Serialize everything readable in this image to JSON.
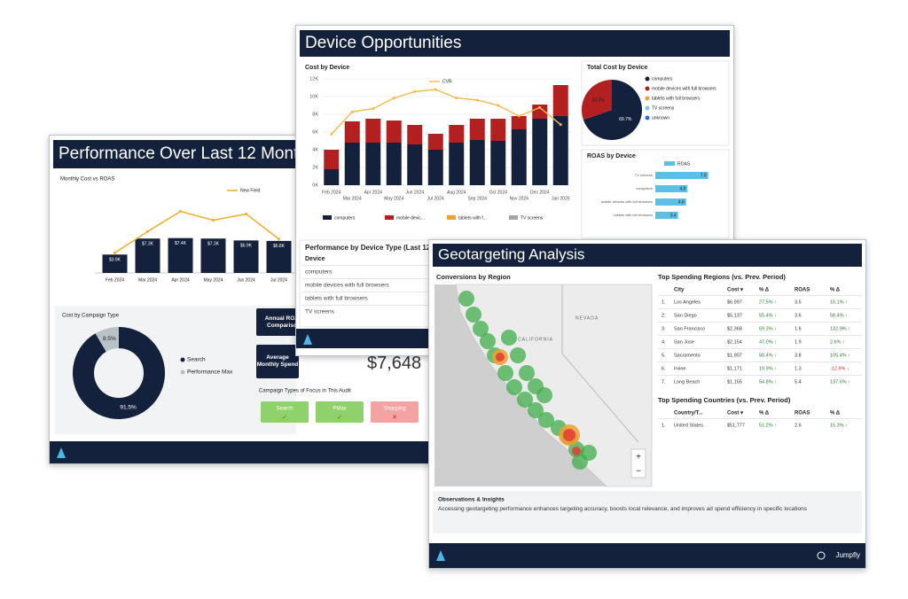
{
  "performance": {
    "title": "Performance Over Last 12 Months",
    "monthly_chart": {
      "type": "bar",
      "title": "Monthly Cost vs ROAS",
      "categories": [
        "Feb 2024",
        "Mar 2024",
        "Apr 2024",
        "May 2024",
        "Jun 2024",
        "Jul 2024"
      ],
      "bars": {
        "color": "#14213d",
        "values": [
          3900,
          7300,
          7400,
          7300,
          6900,
          6800
        ],
        "value_labels": [
          "$3.9K",
          "$7.3K",
          "$7.4K",
          "$7.3K",
          "$6.9K",
          "$6.8K"
        ]
      },
      "line": {
        "name": "New Field",
        "color": "#f2b134",
        "values": [
          1.6,
          3.3,
          4.9,
          4.2,
          4.7,
          2.7
        ]
      },
      "ylim": [
        0,
        16000
      ],
      "y2lim": [
        0,
        6
      ]
    },
    "donut": {
      "type": "pie",
      "title": "Cost by Campaign Type",
      "labels": [
        "Search",
        "Performance Max"
      ],
      "values": [
        91.5,
        8.5
      ],
      "value_labels": [
        "91.5%",
        "8.5%"
      ],
      "colors": [
        "#14213d",
        "#b8c2c7"
      ]
    },
    "annual_button": "Annual ROAS Comparison",
    "average_button": "Average Monthly Spend",
    "average_value": "$7,648",
    "focus": {
      "title": "Campaign Types of Focus in This Audit",
      "chips": [
        {
          "label": "Search",
          "status": "✓"
        },
        {
          "label": "PMax",
          "status": "✓"
        },
        {
          "label": "Shopping",
          "status": "✕"
        }
      ]
    }
  },
  "device": {
    "title": "Device Opportunities",
    "cost_chart": {
      "type": "bar",
      "title": "Cost by Device",
      "categories": [
        "Feb 2024",
        "Mar 2024",
        "Apr 2024",
        "May 2024",
        "Jun 2024",
        "Jul 2024",
        "Aug 2024",
        "Sep 2024",
        "Oct 2024",
        "Nov 2024",
        "Dec 2024",
        "Jan 2025"
      ],
      "series": [
        {
          "name": "computers",
          "color": "#14213d",
          "values": [
            1.8,
            4.8,
            4.8,
            4.8,
            4.6,
            4.0,
            4.8,
            5.1,
            5.0,
            6.3,
            7.5,
            7.8
          ]
        },
        {
          "name": "mobile devic...",
          "color": "#b3201f",
          "values": [
            2.2,
            2.4,
            2.7,
            2.5,
            2.2,
            1.8,
            2.0,
            2.4,
            2.5,
            1.5,
            1.6,
            3.5
          ]
        },
        {
          "name": "tablets with f...",
          "color": "#f0a030",
          "values": [
            0,
            0,
            0,
            0,
            0,
            0,
            0,
            0,
            0,
            0,
            0,
            0
          ]
        },
        {
          "name": "TV screens",
          "color": "#a6a6a6",
          "values": [
            0,
            0,
            0,
            0,
            0,
            0,
            0,
            0,
            0,
            0,
            0,
            0
          ]
        },
        {
          "name": "CVR",
          "color": "#f5b94a",
          "axis": "y2",
          "values": [
            4.8,
            6.9,
            7.2,
            8.2,
            8.8,
            9.0,
            8.2,
            8.0,
            7.5,
            6.5,
            7.3,
            5.7
          ]
        }
      ],
      "ylim": [
        0,
        12
      ],
      "yticks": [
        {
          "value": 0,
          "label": "0K"
        },
        {
          "value": 2,
          "label": "2K"
        },
        {
          "value": 4,
          "label": "4K"
        },
        {
          "value": 6,
          "label": "6K"
        },
        {
          "value": 8,
          "label": "8K"
        },
        {
          "value": 10,
          "label": "10K"
        },
        {
          "value": 12,
          "label": "12K"
        }
      ],
      "y2lim": [
        0,
        10
      ]
    },
    "total_cost": {
      "type": "pie",
      "title": "Total Cost by Device",
      "labels": [
        "computers",
        "mobile devices with full browsers",
        "tablets with full browsers",
        "TV screens",
        "unknown"
      ],
      "values": [
        69.7,
        30.3,
        0,
        0,
        0
      ],
      "value_labels": [
        "69.7%",
        "30.3%",
        null,
        null,
        null
      ],
      "colors": [
        "#14213d",
        "#b3201f",
        "#f0a030",
        "#7fc4e0",
        "#2f6fb0"
      ]
    },
    "roas": {
      "type": "bar",
      "title": "ROAS by Device",
      "legend": "ROAS",
      "color": "#5bc0e8",
      "categories": [
        "TV screens",
        "computers",
        "mobile devices with full browsers",
        "tablets with full browsers"
      ],
      "values": [
        7.9,
        4.8,
        4.6,
        3.4
      ],
      "xlim": [
        0,
        9
      ]
    },
    "table": {
      "title": "Performance by Device Type (Last 12 Months)",
      "header": "Device",
      "rows": [
        "computers",
        "mobile devices with full browsers",
        "tablets with full browsers",
        "TV screens"
      ]
    }
  },
  "geo": {
    "title": "Geotargeting Analysis",
    "map": {
      "title": "Conversions by Region",
      "labels": [
        "NEVADA",
        "CALIFORNIA"
      ]
    },
    "regions": {
      "title": "Top Spending Regions (vs. Prev. Period)",
      "columns": [
        "City",
        "Cost ▾",
        "% Δ",
        "ROAS",
        "% Δ"
      ],
      "rows": [
        [
          "1.",
          "Los Angeles",
          "$6,997",
          "27.5% ↑",
          "3.5",
          "10.1% ↑"
        ],
        [
          "2.",
          "San Diego",
          "$5,137",
          "55.4% ↑",
          "3.6",
          "58.4% ↑"
        ],
        [
          "3.",
          "San Francisco",
          "$2,368",
          "69.3% ↑",
          "1.6",
          "132.9% ↑"
        ],
        [
          "4.",
          "San Jose",
          "$2,154",
          "47.0% ↑",
          "1.9",
          "2.6% ↑"
        ],
        [
          "5.",
          "Sacramento",
          "$1,907",
          "58.4% ↑",
          "3.8",
          "105.4% ↑"
        ],
        [
          "6.",
          "Irvine",
          "$1,171",
          "19.9% ↑",
          "1.3",
          "-12.9% ↓"
        ],
        [
          "7.",
          "Long Beach",
          "$1,155",
          "54.8% ↑",
          "5.4",
          "137.6% ↑"
        ]
      ]
    },
    "countries": {
      "title": "Top Spending Countries (vs. Prev. Period)",
      "columns": [
        "Country/T...",
        "Cost ▾",
        "% Δ",
        "ROAS",
        "% Δ"
      ],
      "rows": [
        [
          "1.",
          "United States",
          "$51,777",
          "51.2% ↑",
          "2.6",
          "15.3% ↑"
        ]
      ]
    },
    "insights": {
      "title": "Observations & Insights",
      "text": "Accessing geotargeting performance enhances targeting accuracy, boosts local relevance, and improves ad spend efficiency in specific locations"
    },
    "brand": "Jumpfly"
  }
}
